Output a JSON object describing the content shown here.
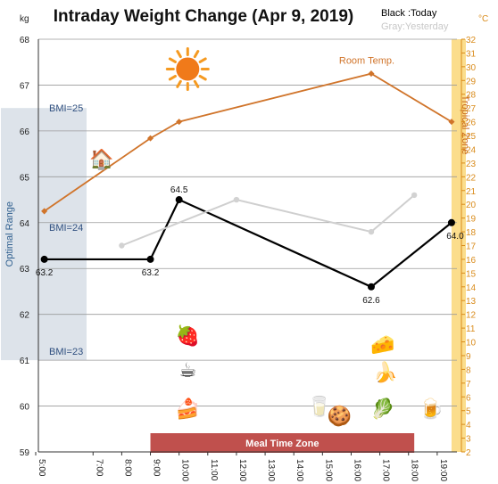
{
  "chart_data": {
    "type": "line",
    "title": "Intraday Weight Change (Apr 9, 2019)",
    "legend": {
      "placement": "top-right",
      "entries": [
        {
          "label": "Black :Today",
          "color": "#000000"
        },
        {
          "label": "Gray:Yesterday",
          "color": "#c8c8c8"
        }
      ]
    },
    "y_left": {
      "unit": "kg",
      "ylim": [
        59,
        68
      ],
      "ticks": [
        "59",
        "60",
        "61",
        "62",
        "63",
        "64",
        "65",
        "66",
        "67",
        "68"
      ],
      "color": "#222222"
    },
    "y_right": {
      "unit": "°C",
      "ylim": [
        2,
        32
      ],
      "ticks": [
        "2",
        "3",
        "4",
        "5",
        "6",
        "7",
        "8",
        "9",
        "10",
        "11",
        "12",
        "13",
        "14",
        "15",
        "16",
        "17",
        "18",
        "19",
        "20",
        "21",
        "22",
        "23",
        "24",
        "25",
        "26",
        "27",
        "28",
        "29",
        "30",
        "31",
        "32"
      ],
      "color": "#d98b1a"
    },
    "x": {
      "ticks": [
        "5:00",
        "7:00",
        "8:00",
        "9:00",
        "10:00",
        "11:00",
        "12:00",
        "13:00",
        "14:00",
        "15:00",
        "16:00",
        "17:00",
        "18:00",
        "19:00"
      ],
      "tick_hours": [
        5,
        7,
        8,
        9,
        10,
        11,
        12,
        13,
        14,
        15,
        16,
        17,
        18,
        19
      ],
      "range_hours": [
        5,
        20
      ]
    },
    "grid": true,
    "series": [
      {
        "name": "Today",
        "axis": "left",
        "color": "#000000",
        "points": [
          {
            "x": 5.3,
            "y": 63.2,
            "label": "63.2"
          },
          {
            "x": 9.0,
            "y": 63.2,
            "label": "63.2"
          },
          {
            "x": 10.0,
            "y": 64.5,
            "label": "64.5"
          },
          {
            "x": 16.7,
            "y": 62.6,
            "label": "62.6"
          },
          {
            "x": 19.5,
            "y": 64.0,
            "label": "64.0"
          }
        ]
      },
      {
        "name": "Yesterday",
        "axis": "left",
        "color": "#cfcfcf",
        "points": [
          {
            "x": 8.0,
            "y": 63.5
          },
          {
            "x": 12.0,
            "y": 64.5
          },
          {
            "x": 16.7,
            "y": 63.8
          },
          {
            "x": 18.2,
            "y": 64.6
          }
        ]
      },
      {
        "name": "Room Temp.",
        "axis": "right",
        "color": "#d0742a",
        "points": [
          {
            "x": 5.3,
            "y": 19.5
          },
          {
            "x": 9.0,
            "y": 24.8
          },
          {
            "x": 10.0,
            "y": 26.0
          },
          {
            "x": 16.7,
            "y": 29.5
          },
          {
            "x": 19.5,
            "y": 26.0
          }
        ]
      }
    ],
    "annotations": {
      "room_temp_label": "Room Temp.",
      "optimal_range": "Optimal Range",
      "tropical_zone": "Tropical Zone",
      "meal_time_zone": "Meal Time Zone",
      "bmi_lines": [
        {
          "label": "BMI=25",
          "y": 66.5
        },
        {
          "label": "BMI=24",
          "y": 63.9
        },
        {
          "label": "BMI=23",
          "y": 61.2
        }
      ],
      "optimal_band_kg": [
        61.0,
        66.5
      ],
      "tropical_band_hours": [
        19.5,
        20
      ],
      "meal_band_hours": [
        9,
        18.2
      ]
    },
    "icons": [
      {
        "name": "sun-icon",
        "glyph": "",
        "x": 10.3,
        "y": 67.35
      },
      {
        "name": "fireplace-icon",
        "glyph": "🏠",
        "x": 7.3,
        "y": 65.4
      },
      {
        "name": "strawberry-icon",
        "glyph": "🍓",
        "x": 10.3,
        "y": 61.55
      },
      {
        "name": "coffee-icon",
        "glyph": "☕",
        "x": 10.3,
        "y": 60.8
      },
      {
        "name": "cake-icon",
        "glyph": "🍰",
        "x": 10.3,
        "y": 59.95
      },
      {
        "name": "water-glass-icon",
        "glyph": "🥛",
        "x": 14.9,
        "y": 60.0
      },
      {
        "name": "cookies-icon",
        "glyph": "🍪",
        "x": 15.6,
        "y": 59.8
      },
      {
        "name": "cheese-icon",
        "glyph": "🧀",
        "x": 17.1,
        "y": 61.35
      },
      {
        "name": "banana-icon",
        "glyph": "🍌",
        "x": 17.2,
        "y": 60.75
      },
      {
        "name": "lettuce-icon",
        "glyph": "🥬",
        "x": 17.1,
        "y": 59.95
      },
      {
        "name": "beer-icon",
        "glyph": "🍺",
        "x": 18.8,
        "y": 59.95
      }
    ]
  }
}
